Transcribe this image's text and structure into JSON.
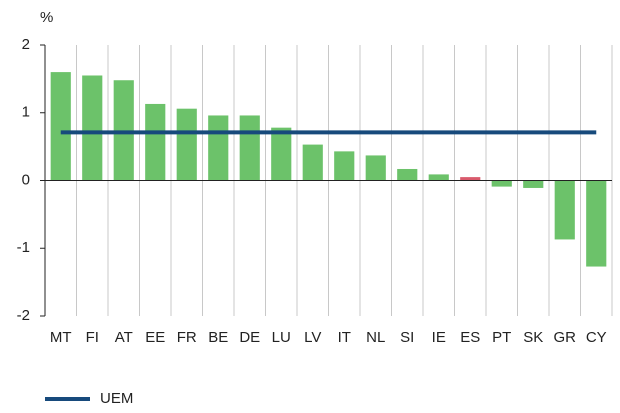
{
  "chart_data": {
    "type": "bar",
    "y_axis_label": "%",
    "categories": [
      "MT",
      "FI",
      "AT",
      "EE",
      "FR",
      "BE",
      "DE",
      "LU",
      "LV",
      "IT",
      "NL",
      "SI",
      "IE",
      "ES",
      "PT",
      "SK",
      "GR",
      "CY"
    ],
    "series": [
      {
        "values": [
          1.6,
          1.55,
          1.48,
          1.13,
          1.06,
          0.96,
          0.96,
          0.78,
          0.53,
          0.43,
          0.37,
          0.17,
          0.09,
          0.05,
          -0.09,
          -0.11,
          -0.87,
          -1.27
        ],
        "colors": [
          "#6cc26a",
          "#6cc26a",
          "#6cc26a",
          "#6cc26a",
          "#6cc26a",
          "#6cc26a",
          "#6cc26a",
          "#6cc26a",
          "#6cc26a",
          "#6cc26a",
          "#6cc26a",
          "#6cc26a",
          "#6cc26a",
          "#d95a6c",
          "#6cc26a",
          "#6cc26a",
          "#6cc26a",
          "#6cc26a"
        ]
      },
      {
        "name": "UEM",
        "type": "line",
        "color": "#174a7c",
        "values": [
          0.71,
          0.71,
          0.71,
          0.71,
          0.71,
          0.71,
          0.71,
          0.71,
          0.71,
          0.71,
          0.71,
          0.71,
          0.71,
          0.71,
          0.71,
          0.71,
          0.71,
          0.71
        ]
      }
    ],
    "ylim": [
      -2,
      2
    ],
    "yticks": [
      -2,
      -1,
      0,
      1,
      2
    ],
    "grid": "vertical",
    "legend": "bottom-left"
  }
}
